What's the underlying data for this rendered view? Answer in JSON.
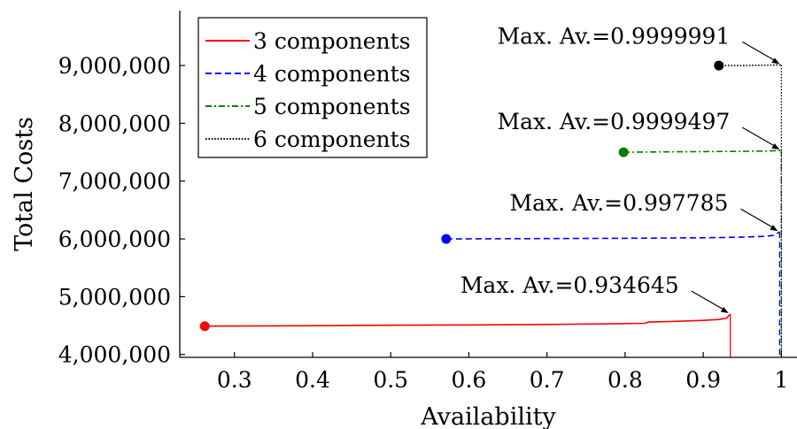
{
  "chart_data": {
    "type": "line",
    "title": "",
    "xlabel": "Availability",
    "ylabel": "Total Costs",
    "xlim": [
      0.23,
      1.02
    ],
    "ylim": [
      3950000,
      9950000
    ],
    "xticks": [
      0.3,
      0.4,
      0.5,
      0.6,
      0.7,
      0.8,
      0.9,
      1
    ],
    "xtick_labels": [
      "0.3",
      "0.4",
      "0.5",
      "0.6",
      "0.7",
      "0.8",
      "0.9",
      "1"
    ],
    "yticks": [
      4000000,
      5000000,
      6000000,
      7000000,
      8000000,
      9000000
    ],
    "ytick_labels": [
      "4,000,000",
      "5,000,000",
      "6,000,000",
      "7,000,000",
      "8,000,000",
      "9,000,000"
    ],
    "grid": false,
    "legend": "top-left",
    "series": [
      {
        "name": "3 components",
        "color": "#ff0000",
        "dash": "solid",
        "x": [
          0.262,
          0.35,
          0.5,
          0.6,
          0.7,
          0.78,
          0.825,
          0.83,
          0.87,
          0.9,
          0.92,
          0.93,
          0.934645
        ],
        "y": [
          4490000,
          4495000,
          4505000,
          4510000,
          4520000,
          4530000,
          4540000,
          4560000,
          4575000,
          4590000,
          4605000,
          4630000,
          4700000
        ],
        "start_marker": {
          "x": 0.262,
          "y": 4490000
        },
        "max_drop": {
          "x": 0.934645,
          "y0": 4700000,
          "y1": 3950000
        },
        "annotation": {
          "text": "Max. Av.=0.934645",
          "x": 0.934645,
          "y": 4700000
        }
      },
      {
        "name": "4 components",
        "color": "#0000ff",
        "dash": "dashed",
        "x": [
          0.571,
          0.7,
          0.8,
          0.9,
          0.95,
          0.98,
          0.99,
          0.997785
        ],
        "y": [
          6000000,
          6005000,
          6010000,
          6020000,
          6030000,
          6045000,
          6060000,
          6120000
        ],
        "start_marker": {
          "x": 0.571,
          "y": 6000000
        },
        "max_drop": {
          "x": 0.997785,
          "y0": 6120000,
          "y1": 3950000
        },
        "annotation": {
          "text": "Max. Av.=0.997785",
          "x": 0.997785,
          "y": 6120000
        }
      },
      {
        "name": "5 components",
        "color": "#008000",
        "dash": "dashdot",
        "x": [
          0.798,
          0.85,
          0.9,
          0.95,
          0.98,
          0.99,
          0.9999497
        ],
        "y": [
          7500000,
          7505000,
          7510000,
          7515000,
          7520000,
          7525000,
          7530000
        ],
        "start_marker": {
          "x": 0.798,
          "y": 7500000
        },
        "max_drop": {
          "x": 0.9999497,
          "y0": 7530000,
          "y1": 3950000
        },
        "annotation": {
          "text": "Max. Av.=0.9999497",
          "x": 0.9999497,
          "y": 7530000
        }
      },
      {
        "name": "6 components",
        "color": "#000000",
        "dash": "dotted",
        "x": [
          0.92,
          0.95,
          0.98,
          0.9999991
        ],
        "y": [
          9000000,
          9000000,
          9005000,
          9010000
        ],
        "start_marker": {
          "x": 0.92,
          "y": 9000000
        },
        "max_drop": {
          "x": 0.9999991,
          "y0": 9010000,
          "y1": 3950000
        },
        "annotation": {
          "text": "Max. Av.=0.9999991",
          "x": 0.9999991,
          "y": 9010000
        }
      }
    ]
  }
}
